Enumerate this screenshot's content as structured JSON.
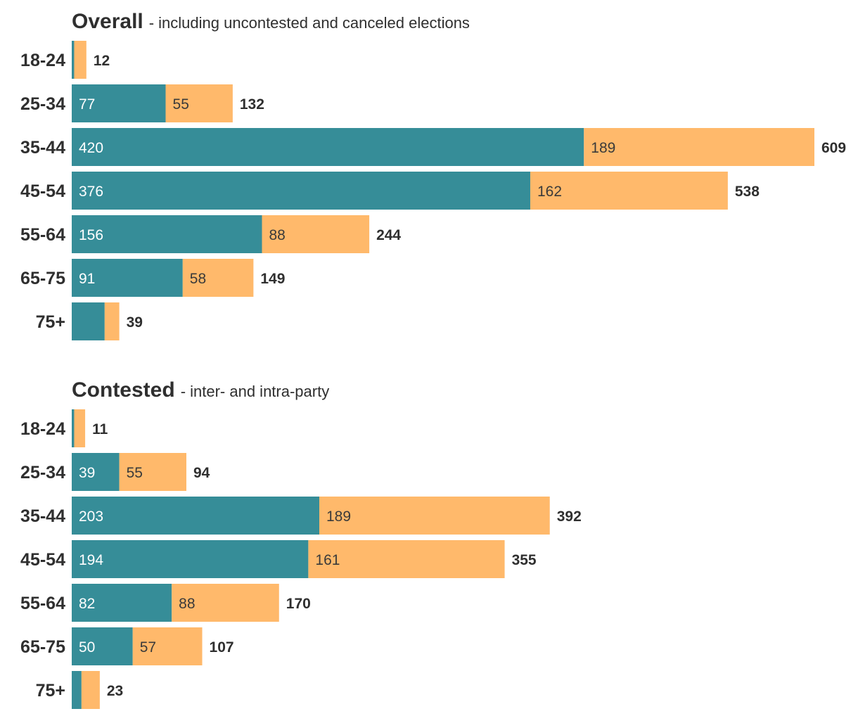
{
  "colors": {
    "series_a": "#368d98",
    "series_b": "#ffb96b",
    "label_on_a": "#ffffff",
    "label_on_b": "#3a3a3a",
    "text": "#2f2f2f"
  },
  "chart_data": [
    {
      "type": "bar",
      "orientation": "horizontal",
      "stacked": true,
      "title": "Overall",
      "subtitle": "- including uncontested and canceled elections",
      "categories": [
        "18-24",
        "25-34",
        "35-44",
        "45-54",
        "55-64",
        "65-75",
        "75+"
      ],
      "series": [
        {
          "name": "series_a",
          "values": [
            2,
            77,
            420,
            376,
            156,
            91,
            27
          ],
          "labels": [
            "",
            "77",
            "420",
            "376",
            "156",
            "91",
            ""
          ]
        },
        {
          "name": "series_b",
          "values": [
            10,
            55,
            189,
            162,
            88,
            58,
            12
          ],
          "labels": [
            "",
            "55",
            "189",
            "162",
            "88",
            "58",
            ""
          ]
        }
      ],
      "totals": [
        "12",
        "132",
        "609",
        "538",
        "244",
        "149",
        "39"
      ],
      "xlim": [
        0,
        609
      ]
    },
    {
      "type": "bar",
      "orientation": "horizontal",
      "stacked": true,
      "title": "Contested",
      "subtitle": "- inter- and intra-party",
      "categories": [
        "18-24",
        "25-34",
        "35-44",
        "45-54",
        "55-64",
        "65-75",
        "75+"
      ],
      "series": [
        {
          "name": "series_a",
          "values": [
            2,
            39,
            203,
            194,
            82,
            50,
            8
          ],
          "labels": [
            "",
            "39",
            "203",
            "194",
            "82",
            "50",
            ""
          ]
        },
        {
          "name": "series_b",
          "values": [
            9,
            55,
            189,
            161,
            88,
            57,
            15
          ],
          "labels": [
            "",
            "55",
            "189",
            "161",
            "88",
            "57",
            ""
          ]
        }
      ],
      "totals": [
        "11",
        "94",
        "392",
        "355",
        "170",
        "107",
        "23"
      ],
      "xlim": [
        0,
        609
      ]
    }
  ]
}
